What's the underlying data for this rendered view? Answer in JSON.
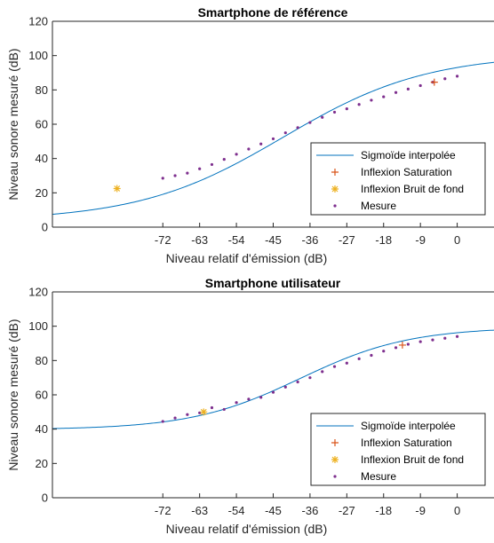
{
  "chart_data": [
    {
      "type": "line",
      "title": "Smartphone de référence",
      "xlabel": "Niveau relatif d'émission (dB)",
      "ylabel": "Niveau sonore mesuré (dB)",
      "xlim": [
        -99,
        9
      ],
      "ylim": [
        0,
        120
      ],
      "xticks": [
        -72,
        -63,
        -54,
        -45,
        -36,
        -27,
        -18,
        -9,
        0
      ],
      "yticks": [
        0,
        20,
        40,
        60,
        80,
        100,
        120
      ],
      "grid": false,
      "legend_position": "bottom-right",
      "legend": [
        "Sigmoïde interpolée",
        "Inflexion Saturation",
        "Inflexion Bruit de fond",
        "Mesure"
      ],
      "sigmoid": {
        "low": 3.7,
        "high": 101,
        "midpoint": -42.6,
        "scale": 17.6
      },
      "inflexion_saturation": {
        "x": -5.6,
        "y": 84.5
      },
      "inflexion_bruit_de_fond": {
        "x": -83.2,
        "y": 22.5
      },
      "mesure": {
        "x": [
          -72,
          -69,
          -66,
          -63,
          -60,
          -57,
          -54,
          -51,
          -48,
          -45,
          -42,
          -39,
          -36,
          -33,
          -30,
          -27,
          -24,
          -21,
          -18,
          -15,
          -12,
          -9,
          -6,
          -3,
          0
        ],
        "y": [
          28.5,
          30.0,
          31.5,
          34.0,
          36.5,
          39.5,
          42.5,
          45.5,
          48.5,
          51.5,
          55.0,
          58.0,
          61.0,
          64.0,
          67.0,
          69.0,
          71.5,
          74.0,
          76.0,
          78.5,
          80.5,
          82.5,
          84.5,
          86.5,
          88.0
        ]
      },
      "colors": {
        "curve": "#0072BD",
        "saturation": "#D95319",
        "bruit": "#EDB120",
        "mesure": "#7E2F8E"
      }
    },
    {
      "type": "line",
      "title": "Smartphone utilisateur",
      "xlabel": "Niveau relatif d'émission (dB)",
      "ylabel": "Niveau sonore mesuré (dB)",
      "xlim": [
        -99,
        9
      ],
      "ylim": [
        0,
        120
      ],
      "xticks": [
        -72,
        -63,
        -54,
        -45,
        -36,
        -27,
        -18,
        -9,
        0
      ],
      "yticks": [
        0,
        20,
        40,
        60,
        80,
        100,
        120
      ],
      "grid": false,
      "legend_position": "bottom-right",
      "legend": [
        "Sigmoïde interpolée",
        "Inflexion Saturation",
        "Inflexion Bruit de fond",
        "Mesure"
      ],
      "sigmoid": {
        "low": 39.7,
        "high": 99.4,
        "midpoint": -38.4,
        "scale": 13.4
      },
      "inflexion_saturation": {
        "x": -13.4,
        "y": 89.0
      },
      "inflexion_bruit_de_fond": {
        "x": -62.0,
        "y": 50.0
      },
      "mesure": {
        "x": [
          -72,
          -69,
          -66,
          -63,
          -60,
          -57,
          -54,
          -51,
          -48,
          -45,
          -42,
          -39,
          -36,
          -33,
          -30,
          -27,
          -24,
          -21,
          -18,
          -15,
          -12,
          -9,
          -6,
          -3,
          0
        ],
        "y": [
          44.5,
          46.5,
          48.5,
          49.5,
          52.5,
          51.5,
          55.5,
          57.5,
          58.5,
          61.5,
          64.5,
          67.5,
          70.0,
          73.5,
          76.5,
          78.5,
          81.0,
          83.0,
          85.5,
          87.5,
          89.5,
          91.0,
          92.0,
          93.0,
          94.0
        ]
      },
      "colors": {
        "curve": "#0072BD",
        "saturation": "#D95319",
        "bruit": "#EDB120",
        "mesure": "#7E2F8E"
      }
    }
  ]
}
